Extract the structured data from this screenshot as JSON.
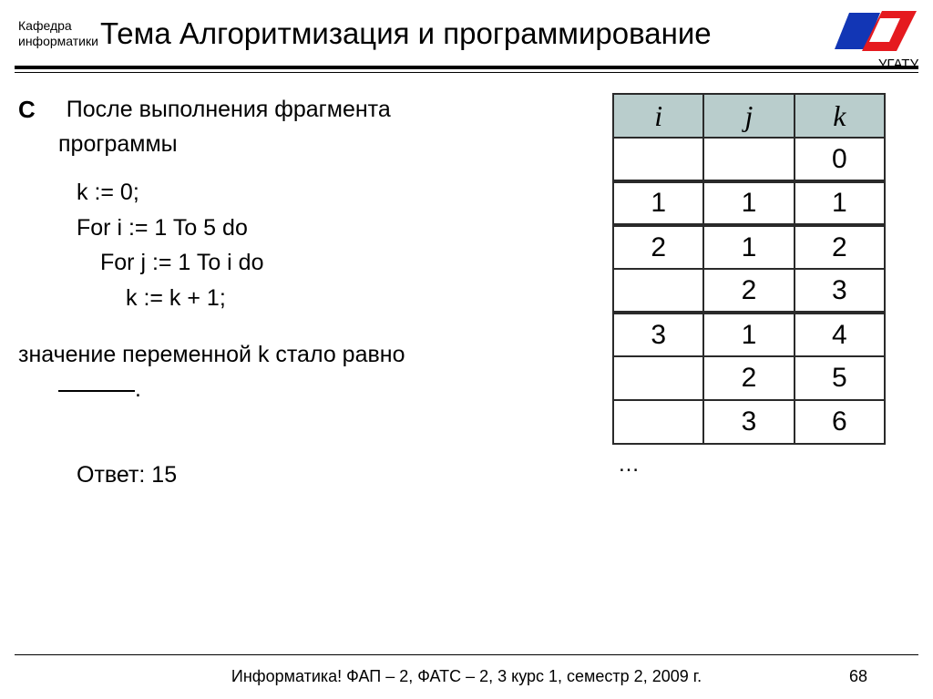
{
  "header": {
    "dept_line1": "Кафедра",
    "dept_line2": "информатики",
    "title": "Тема Алгоритмизация и программирование",
    "univ": "УГАТУ",
    "logo": {
      "blue": "#1236b5",
      "red": "#e51a1f",
      "white": "#ffffff"
    }
  },
  "problem": {
    "marker": "С",
    "lead": "После выполнения фрагмента",
    "lead_sub": "программы",
    "code": {
      "l1": "k := 0;",
      "l2": "For i := 1 To 5 do",
      "l3": "For j := 1 To i do",
      "l4": "k := k + 1;"
    },
    "result_line": "значение переменной k стало равно",
    "blank_tail": ".",
    "answer_label": "Ответ: 15"
  },
  "table": {
    "headers": [
      "i",
      "j",
      "k"
    ],
    "header_bg": "#b9cdcc",
    "border_color": "#2a2a2a",
    "rows": [
      {
        "i": "",
        "j": "",
        "k": "0",
        "sep": false
      },
      {
        "i": "1",
        "j": "1",
        "k": "1",
        "sep": true
      },
      {
        "i": "2",
        "j": "1",
        "k": "2",
        "sep": true
      },
      {
        "i": "",
        "j": "2",
        "k": "3",
        "sep": false
      },
      {
        "i": "3",
        "j": "1",
        "k": "4",
        "sep": true
      },
      {
        "i": "",
        "j": "2",
        "k": "5",
        "sep": false
      },
      {
        "i": "",
        "j": "3",
        "k": "6",
        "sep": false
      }
    ],
    "ellipsis": "…"
  },
  "footer": {
    "text": "Информатика! ФАП – 2, ФАТС – 2, 3 курс 1, семестр 2, 2009 г.",
    "page": "68"
  }
}
